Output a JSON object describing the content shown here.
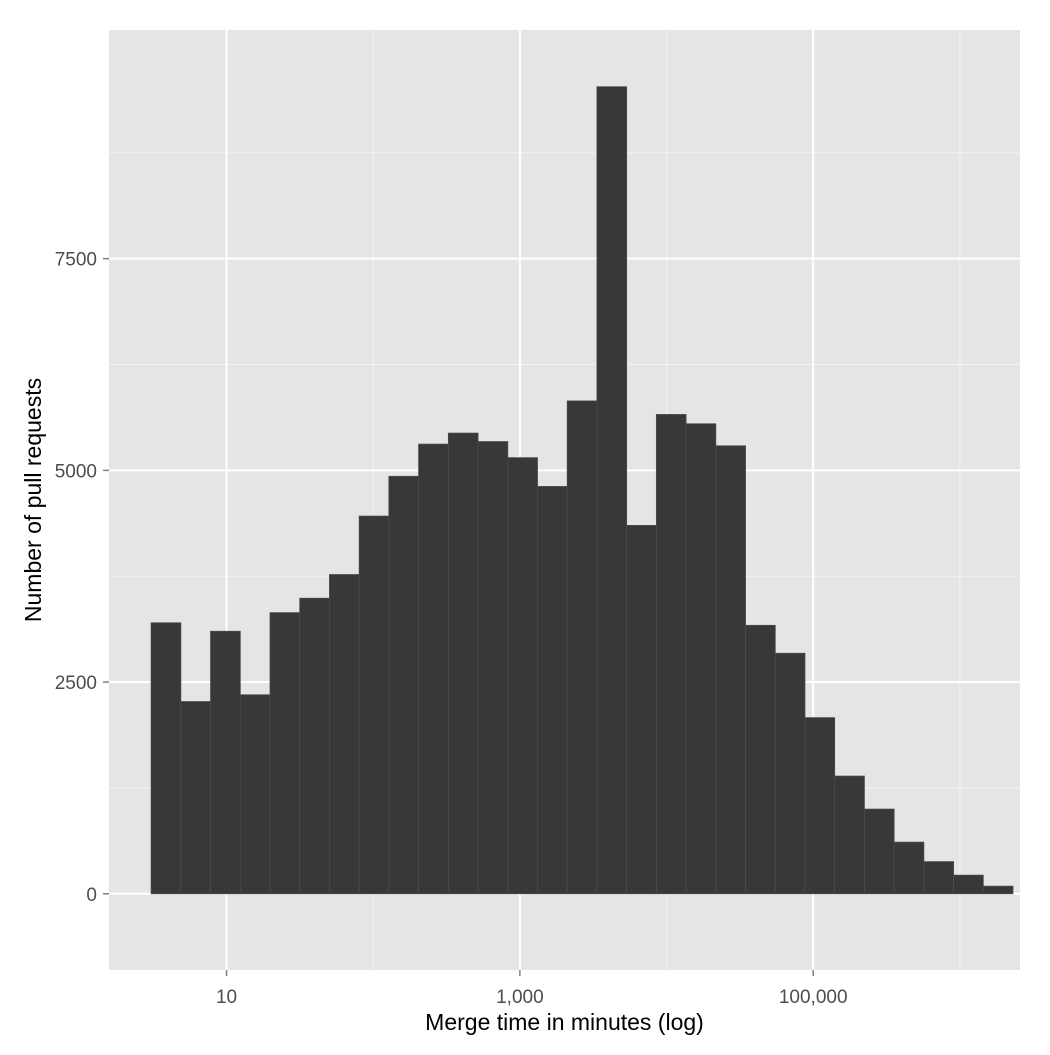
{
  "colors": {
    "panel_background": "#e5e5e5",
    "grid_major": "#ffffff",
    "grid_minor": "#f2f2f2",
    "bar_fill": "#383838",
    "bar_outline": "#4a4a4a",
    "tick_text": "#4d4d4d"
  },
  "chart_data": {
    "type": "bar",
    "xlabel": "Merge time in minutes (log)",
    "ylabel": "Number of pull requests",
    "x_scale": "log10",
    "xlim": [
      1.58,
      2570000
    ],
    "ylim": [
      -900,
      10200
    ],
    "x_ticks": [
      {
        "value": 10,
        "label": "10"
      },
      {
        "value": 1000,
        "label": "1,000"
      },
      {
        "value": 100000,
        "label": "100,000"
      }
    ],
    "y_ticks": [
      {
        "value": 0,
        "label": "0"
      },
      {
        "value": 2500,
        "label": "2500"
      },
      {
        "value": 5000,
        "label": "5000"
      },
      {
        "value": 7500,
        "label": "7500"
      }
    ],
    "grid": true,
    "bin_edges": [
      3.06,
      4.88,
      7.78,
      12.41,
      19.79,
      31.55,
      50.32,
      80.23,
      127.9,
      204.0,
      325.3,
      518.7,
      827.1,
      1319,
      2103,
      3353,
      5347,
      8525,
      13590,
      21670,
      34560,
      55110,
      87880,
      140100,
      223400,
      356200,
      568000,
      905700,
      1444000,
      2303000
    ],
    "values": [
      3200,
      2270,
      3100,
      2350,
      3320,
      3490,
      3770,
      4460,
      4930,
      5310,
      5440,
      5340,
      5150,
      4810,
      5820,
      9530,
      4350,
      5660,
      5550,
      5290,
      3170,
      2840,
      2080,
      1390,
      1000,
      610,
      380,
      220,
      90
    ]
  }
}
